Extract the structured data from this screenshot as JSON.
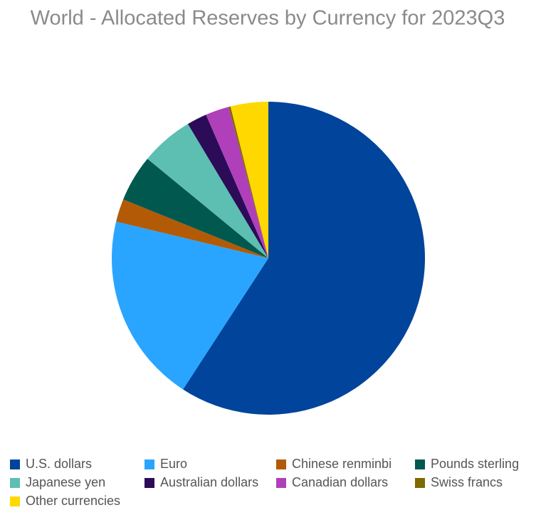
{
  "chart_data": {
    "type": "pie",
    "title": "World - Allocated Reserves by Currency for 2023Q3",
    "categories": [
      "U.S. dollars",
      "Euro",
      "Chinese renminbi",
      "Pounds sterling",
      "Japanese yen",
      "Australian dollars",
      "Canadian dollars",
      "Swiss francs",
      "Other currencies"
    ],
    "values": [
      59.17,
      19.58,
      2.37,
      4.83,
      5.45,
      2.07,
      2.44,
      0.19,
      3.89
    ],
    "colors": [
      "#00449b",
      "#2aa5ff",
      "#b35a06",
      "#00584f",
      "#5cbfb2",
      "#2c0b58",
      "#b03fba",
      "#7d6a00",
      "#ffd800"
    ]
  }
}
